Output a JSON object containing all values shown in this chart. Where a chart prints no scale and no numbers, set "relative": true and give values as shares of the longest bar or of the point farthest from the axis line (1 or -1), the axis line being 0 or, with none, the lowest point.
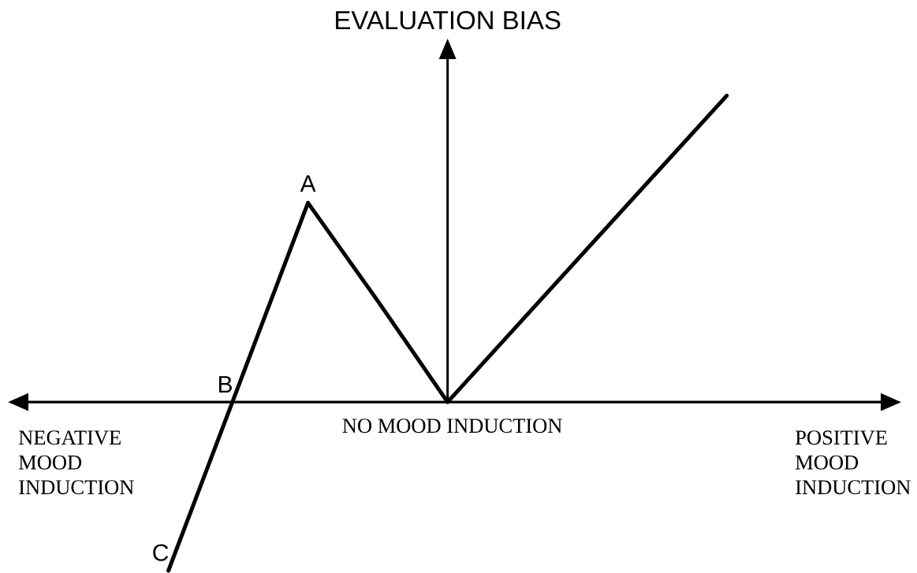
{
  "chart_data": {
    "type": "line",
    "relative": true,
    "ylabel": "EVALUATION BIAS",
    "categories": [
      null,
      null,
      null,
      null,
      null,
      null,
      null,
      null,
      null
    ],
    "values": [
      -0.55,
      0.05,
      0.65,
      0.33,
      0,
      0.25,
      0.5,
      0.75,
      1
    ],
    "color": "#000000",
    "marker": "none",
    "line_style": "solid",
    "annotations": [
      {
        "text": "A",
        "y": 0.65
      },
      "B",
      "C",
      "NEGATIVE MOOD INDUCTION",
      "NO MOOD INDUCTION",
      "POSITIVE MOOD INDUCTION"
    ]
  }
}
